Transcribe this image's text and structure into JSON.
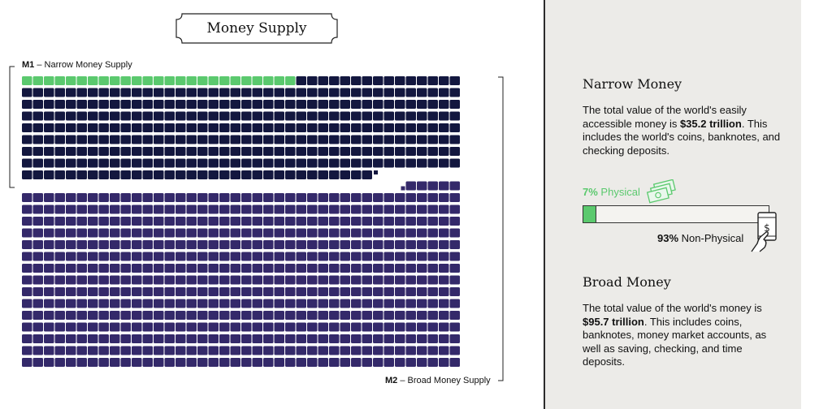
{
  "title": "Money Supply",
  "legend": {
    "m1_code": "M1",
    "m1_text": "– Narrow Money Supply",
    "m2_code": "M2",
    "m2_text": "– Broad Money Supply"
  },
  "colors": {
    "physical": "#5bc96e",
    "narrow": "#13173f",
    "broad": "#34296a"
  },
  "chart_data": {
    "type": "waffle",
    "unit": "1 square = $0.1 trillion",
    "narrow_money_trillion": 35.2,
    "broad_money_trillion": 95.7,
    "physical_share_of_narrow_percent": 7,
    "nonphysical_share_of_narrow_percent": 93
  },
  "narrow": {
    "title": "Narrow Money",
    "text_before": "The total value of the world's easily accessible money is ",
    "value": "$35.2 trillion",
    "text_after": ". This includes the world's coins, banknotes, and checking deposits."
  },
  "split": {
    "physical_pct": "7%",
    "physical_label": "Physical",
    "nonphysical_pct": "93%",
    "nonphysical_label": "Non-Physical",
    "physical_fraction": 0.07
  },
  "broad": {
    "title": "Broad Money",
    "text_before": "The total value of the world's money is ",
    "value": "$95.7 trillion",
    "text_after": ". This includes coins, banknotes, money market accounts, as well as saving, checking, and time deposits."
  },
  "icons": {
    "cash": "cash-stack-icon",
    "phone": "hand-phone-payment-icon"
  }
}
